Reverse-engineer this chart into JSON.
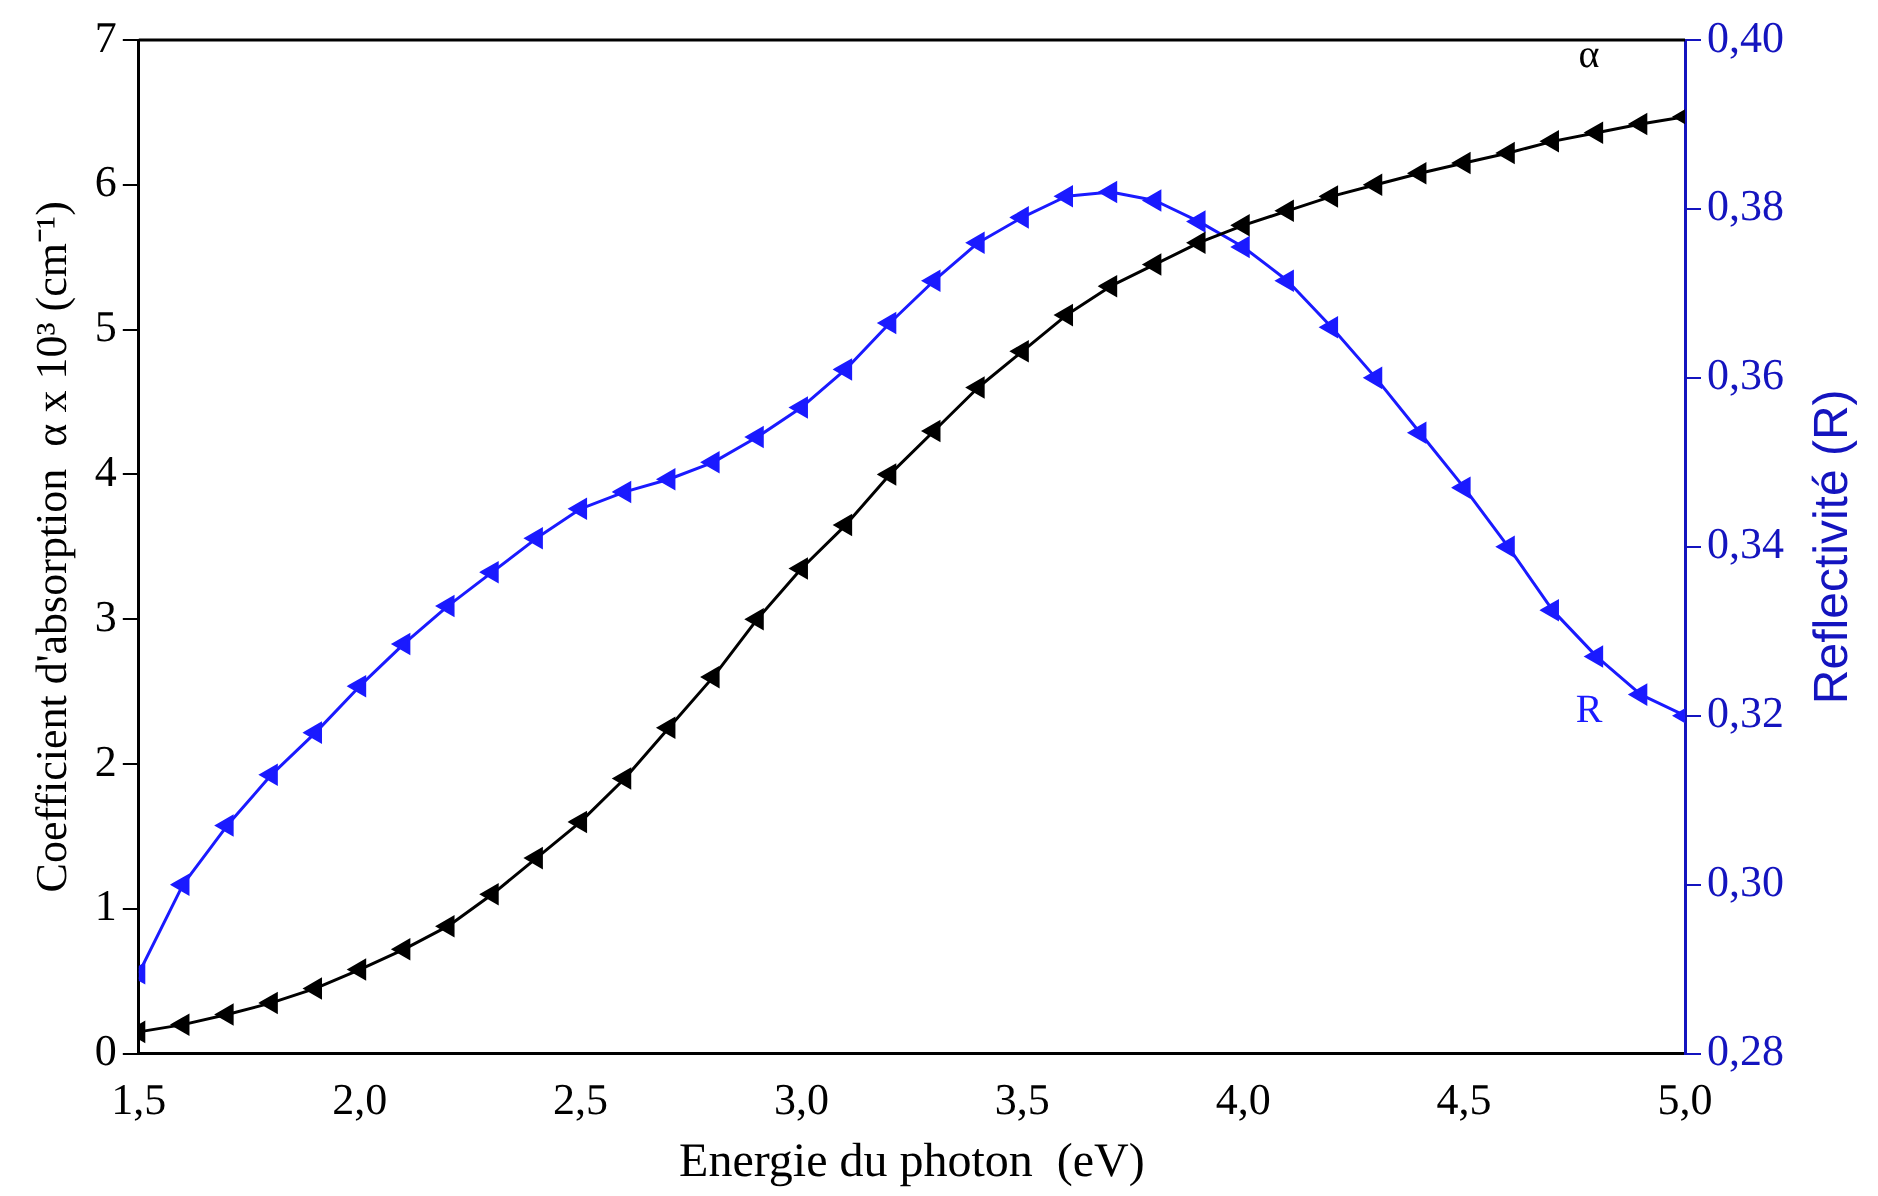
{
  "chart_data": {
    "type": "line",
    "xlabel": "Energie du photon  (eV)",
    "ylabel": "Coefficient d'absorption  α x 10³ (cm⁻¹)",
    "y2label": "Reflectivité (R)",
    "x": [
      1.5,
      1.6,
      1.7,
      1.8,
      1.9,
      2.0,
      2.1,
      2.2,
      2.3,
      2.4,
      2.5,
      2.6,
      2.7,
      2.8,
      2.9,
      3.0,
      3.1,
      3.2,
      3.3,
      3.4,
      3.5,
      3.6,
      3.7,
      3.8,
      3.9,
      4.0,
      4.1,
      4.2,
      4.3,
      4.4,
      4.5,
      4.6,
      4.7,
      4.8,
      4.9,
      5.0
    ],
    "series": [
      {
        "name": "α",
        "color": "#000000",
        "values": [
          0.15,
          0.2,
          0.27,
          0.35,
          0.45,
          0.58,
          0.72,
          0.88,
          1.1,
          1.35,
          1.6,
          1.9,
          2.25,
          2.6,
          3.0,
          3.35,
          3.65,
          4.0,
          4.3,
          4.6,
          4.85,
          5.1,
          5.3,
          5.45,
          5.6,
          5.72,
          5.82,
          5.92,
          6.0,
          6.08,
          6.15,
          6.22,
          6.3,
          6.36,
          6.42,
          6.47
        ]
      },
      {
        "name": "R",
        "color": "#1a1aff",
        "axis": "y2",
        "values": [
          0.2895,
          0.3,
          0.307,
          0.313,
          0.318,
          0.3235,
          0.3285,
          0.333,
          0.337,
          0.341,
          0.3445,
          0.3465,
          0.348,
          0.35,
          0.353,
          0.3565,
          0.361,
          0.3665,
          0.3715,
          0.376,
          0.379,
          0.3815,
          0.382,
          0.381,
          0.3785,
          0.3755,
          0.3715,
          0.366,
          0.36,
          0.3535,
          0.347,
          0.34,
          0.3325,
          0.327,
          0.3225,
          0.32
        ]
      }
    ],
    "xlim": [
      1.5,
      5.0
    ],
    "xticks": [
      {
        "value": 1.5,
        "label": "1,5"
      },
      {
        "value": 2.0,
        "label": "2,0"
      },
      {
        "value": 2.5,
        "label": "2,5"
      },
      {
        "value": 3.0,
        "label": "3,0"
      },
      {
        "value": 3.5,
        "label": "3,5"
      },
      {
        "value": 4.0,
        "label": "4,0"
      },
      {
        "value": 4.5,
        "label": "4,5"
      },
      {
        "value": 5.0,
        "label": "5,0"
      }
    ],
    "ylim": [
      0,
      7
    ],
    "yticks": [
      0,
      1,
      2,
      3,
      4,
      5,
      6,
      7
    ],
    "y2lim": [
      0.28,
      0.4
    ],
    "y2ticks": [
      {
        "value": 0.28,
        "label": "0,28"
      },
      {
        "value": 0.3,
        "label": "0,30"
      },
      {
        "value": 0.32,
        "label": "0,32"
      },
      {
        "value": 0.34,
        "label": "0,34"
      },
      {
        "value": 0.36,
        "label": "0,36"
      },
      {
        "value": 0.38,
        "label": "0,38"
      },
      {
        "value": 0.4,
        "label": "0,40"
      }
    ],
    "grid": false,
    "legend": false,
    "marker": "triangle",
    "line_style": "solid"
  }
}
